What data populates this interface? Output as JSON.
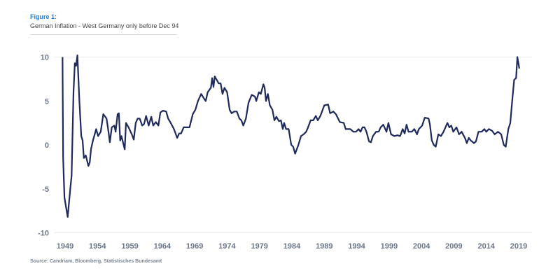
{
  "header": {
    "figure_label": "Figure 1:",
    "subtitle": "German Inflation - West Germany only before Dec 94"
  },
  "source": "Source: Candriam, Bloomberg, Statistisches Bundesamt",
  "colors": {
    "line": "#1f2a5c",
    "title": "#1b7fd6",
    "grid": "#e8ebef"
  },
  "chart_data": {
    "type": "line",
    "title": "German Inflation - West Germany only before Dec 94",
    "xlabel": "",
    "ylabel": "",
    "ylim": [
      -10,
      10
    ],
    "xlim": [
      1948,
      2020
    ],
    "yticks": [
      10,
      5,
      0,
      -5,
      -10
    ],
    "xticks": [
      1949,
      1954,
      1959,
      1964,
      1969,
      1974,
      1979,
      1984,
      1989,
      1994,
      1999,
      2004,
      2009,
      2014,
      2019
    ],
    "grid": "horizontal",
    "series": [
      {
        "name": "German Inflation",
        "x": [
          1948.6,
          1948.7,
          1948.9,
          1949.4,
          1949.8,
          1950.0,
          1950.3,
          1950.5,
          1950.7,
          1950.9,
          1951.2,
          1951.5,
          1951.7,
          1951.9,
          1952.2,
          1952.6,
          1952.8,
          1953.0,
          1953.3,
          1953.8,
          1954.1,
          1954.5,
          1954.9,
          1955.4,
          1955.7,
          1955.9,
          1956.2,
          1956.6,
          1956.8,
          1957.1,
          1957.3,
          1957.5,
          1957.7,
          1958.2,
          1958.4,
          1958.8,
          1959.3,
          1959.6,
          1959.9,
          1960.2,
          1960.5,
          1960.9,
          1961.2,
          1961.5,
          1961.9,
          1962.3,
          1962.6,
          1963.0,
          1963.4,
          1963.7,
          1964.1,
          1964.6,
          1964.9,
          1965.3,
          1965.8,
          1966.3,
          1966.6,
          1966.9,
          1967.3,
          1967.9,
          1968.2,
          1968.7,
          1969.1,
          1969.5,
          1970.0,
          1970.5,
          1970.7,
          1971.0,
          1971.5,
          1971.7,
          1971.9,
          1972.1,
          1972.7,
          1973.0,
          1973.3,
          1973.6,
          1974.0,
          1974.4,
          1974.7,
          1975.1,
          1975.5,
          1975.9,
          1976.2,
          1976.5,
          1976.9,
          1977.3,
          1977.8,
          1978.3,
          1978.5,
          1978.9,
          1979.2,
          1979.6,
          1979.8,
          1980.0,
          1980.3,
          1980.6,
          1981.0,
          1981.3,
          1981.6,
          1982.0,
          1982.3,
          1982.6,
          1982.8,
          1983.1,
          1983.5,
          1983.9,
          1984.2,
          1984.5,
          1985.0,
          1985.4,
          1985.8,
          1986.2,
          1986.5,
          1986.9,
          1987.3,
          1987.7,
          1988.0,
          1988.4,
          1989.0,
          1989.6,
          1989.9,
          1990.4,
          1990.8,
          1991.4,
          1992.0,
          1992.3,
          1993.0,
          1993.5,
          1993.9,
          1994.3,
          1994.6,
          1994.9,
          1995.2,
          1995.5,
          1995.9,
          1996.2,
          1996.5,
          1997.0,
          1997.4,
          1997.7,
          1998.1,
          1998.6,
          1998.9,
          1999.3,
          1999.8,
          2000.3,
          2000.7,
          2001.1,
          2001.4,
          2001.7,
          2002.0,
          2002.5,
          2002.9,
          2003.3,
          2003.6,
          2004.1,
          2004.5,
          2005.1,
          2005.3,
          2005.6,
          2005.9,
          2006.2,
          2006.6,
          2007.0,
          2007.4,
          2008.0,
          2008.3,
          2008.6,
          2008.9,
          2009.4,
          2009.8,
          2010.2,
          2010.7,
          2011.0,
          2011.3,
          2011.6,
          2012.1,
          2012.4,
          2012.8,
          2013.3,
          2013.7,
          2014.0,
          2014.4,
          2014.9,
          2015.3,
          2015.8,
          2016.3,
          2016.7,
          2017.0,
          2017.4,
          2017.7,
          2018.0,
          2018.3,
          2018.6,
          2018.8,
          2019.1
        ],
        "y": [
          10,
          -1.5,
          -6,
          -8.2,
          -5,
          -3.5,
          6,
          9.3,
          9,
          10.2,
          5,
          1,
          0.5,
          -1.5,
          -1.2,
          -2.4,
          -2,
          -0.5,
          0.5,
          1.8,
          1,
          1.5,
          3.5,
          3,
          1.5,
          0.3,
          2,
          2.2,
          1.5,
          3.5,
          3.6,
          0.5,
          1,
          -0.5,
          2.5,
          2,
          1.2,
          0.6,
          2.5,
          3,
          3,
          2.2,
          2.4,
          3.3,
          2.2,
          3.2,
          2.2,
          2.6,
          2.2,
          3.7,
          3.9,
          3.8,
          3,
          2.5,
          1.8,
          0.8,
          1.3,
          1.3,
          2,
          2,
          2,
          3.5,
          4,
          5,
          5.8,
          5.2,
          5,
          6,
          6.5,
          7.6,
          6.6,
          7.8,
          7,
          7,
          5.8,
          6.5,
          6,
          4,
          3.6,
          3.8,
          3.8,
          3,
          2.8,
          2.2,
          3,
          4.8,
          5.7,
          5.5,
          5,
          6,
          5.8,
          6.9,
          6.5,
          5,
          5.8,
          4.5,
          4,
          2.8,
          3.2,
          2.7,
          2.8,
          1.8,
          2.5,
          1.8,
          1.8,
          0,
          -0.2,
          -1,
          0,
          1,
          1.2,
          1.5,
          2,
          2.8,
          2.8,
          3.3,
          2.8,
          3.3,
          4.5,
          4.6,
          3.6,
          3.8,
          3.5,
          2.6,
          2.5,
          1.8,
          1.8,
          1.5,
          1.5,
          1.8,
          1.5,
          2,
          2,
          1.5,
          0.4,
          0.3,
          1,
          1.5,
          1.5,
          2,
          2.3,
          1.5,
          2.5,
          1.2,
          1,
          1.1,
          1,
          1.8,
          1.3,
          2.3,
          1.5,
          1.5,
          1.8,
          1.2,
          1.8,
          2.2,
          3.1,
          3,
          2.3,
          0.5,
          0,
          -0.2,
          1.2,
          1,
          1.5,
          2.5,
          2,
          2.2,
          1.5,
          2,
          1.2,
          1.5,
          0.8,
          0.2,
          0.8,
          0.5,
          0.2,
          0.4,
          1.5,
          1.5,
          1.8,
          1.5,
          1.8,
          1.6,
          1.2,
          1.5,
          1.2,
          0,
          -0.2,
          1.8,
          2.5,
          5,
          7.4,
          7.6,
          10,
          8.7
        ]
      }
    ]
  }
}
